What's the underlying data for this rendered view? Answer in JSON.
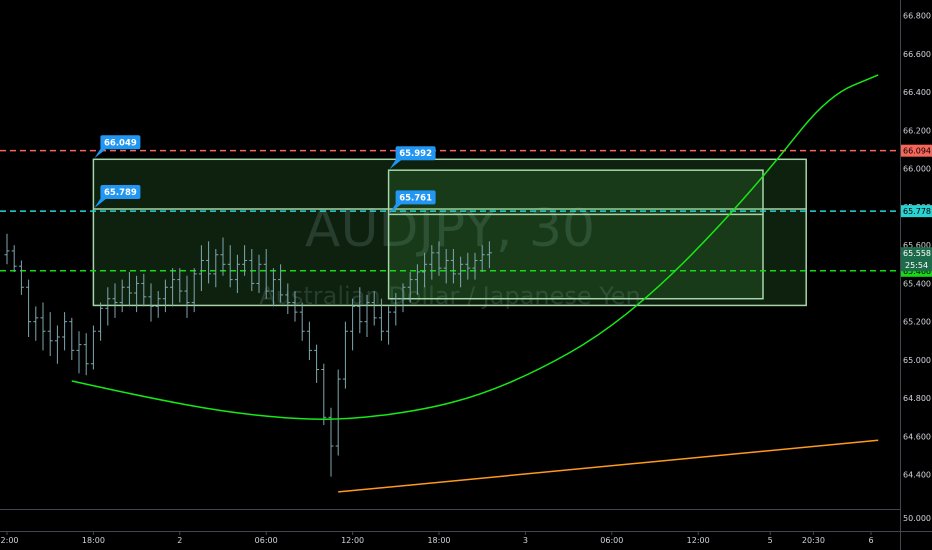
{
  "chart_data": {
    "type": "candlestick",
    "watermark": {
      "symbol": "AUDJPY, 30",
      "description": "Australian Dollar / Japanese Yen"
    },
    "y_axis": {
      "range": [
        64.32,
        66.84
      ],
      "ticks": [
        "66.800",
        "66.600",
        "66.400",
        "66.200",
        "66.000",
        "65.800",
        "65.600",
        "65.400",
        "65.200",
        "65.000",
        "64.800",
        "64.600",
        "64.400"
      ]
    },
    "lower_pane": {
      "ticks": [
        "50.000"
      ]
    },
    "x_axis": {
      "labels": [
        {
          "t": "12:00",
          "i": 0
        },
        {
          "t": "18:00",
          "i": 12
        },
        {
          "t": "2",
          "i": 24
        },
        {
          "t": "06:00",
          "i": 36
        },
        {
          "t": "12:00",
          "i": 48
        },
        {
          "t": "18:00",
          "i": 60
        },
        {
          "t": "3",
          "i": 72
        },
        {
          "t": "06:00",
          "i": 84
        },
        {
          "t": "12:00",
          "i": 96
        },
        {
          "t": "5",
          "i": 106
        },
        {
          "t": "20:30",
          "i": 112
        },
        {
          "t": "6",
          "i": 120
        }
      ]
    },
    "price_levels": [
      {
        "value": 66.094,
        "label": "66.094",
        "color": "#f7665a"
      },
      {
        "value": 65.778,
        "label": "65.778",
        "color": "#27d3d3"
      },
      {
        "value": 65.466,
        "label": "65.466",
        "color": "#16d816"
      }
    ],
    "last_price": {
      "value": 65.558,
      "label": "65.558",
      "countdown": "25:54"
    },
    "boxes": [
      {
        "from": 12,
        "to": 111,
        "top": 66.049,
        "bottom": 65.285,
        "label_top": "66.049",
        "label_mid": "65.789",
        "mid": 65.789
      },
      {
        "from": 53,
        "to": 105,
        "top": 65.992,
        "bottom": 65.32,
        "label_top": "65.992",
        "label_mid": "65.761",
        "mid": 65.761
      }
    ],
    "curve": {
      "color": "#17e817",
      "points": [
        [
          9,
          64.89
        ],
        [
          20,
          64.8
        ],
        [
          30,
          64.73
        ],
        [
          40,
          64.69
        ],
        [
          48,
          64.69
        ],
        [
          58,
          64.74
        ],
        [
          66,
          64.82
        ],
        [
          74,
          64.95
        ],
        [
          82,
          65.12
        ],
        [
          90,
          65.36
        ],
        [
          98,
          65.66
        ],
        [
          106,
          66.0
        ],
        [
          114,
          66.38
        ],
        [
          121,
          66.49
        ]
      ]
    },
    "trendline": {
      "color": "#ff9a1f",
      "points": [
        [
          46,
          64.31
        ],
        [
          121,
          64.58
        ]
      ]
    },
    "candles": [
      [
        65.55,
        65.66,
        65.5,
        65.57
      ],
      [
        65.57,
        65.6,
        65.46,
        65.49
      ],
      [
        65.49,
        65.52,
        65.34,
        65.38
      ],
      [
        65.38,
        65.42,
        65.12,
        65.2
      ],
      [
        65.2,
        65.28,
        65.1,
        65.22
      ],
      [
        65.22,
        65.3,
        65.05,
        65.15
      ],
      [
        65.15,
        65.25,
        65.02,
        65.1
      ],
      [
        65.1,
        65.18,
        64.98,
        65.12
      ],
      [
        65.12,
        65.25,
        65.05,
        65.2
      ],
      [
        65.2,
        65.22,
        65.0,
        65.05
      ],
      [
        65.05,
        65.15,
        64.93,
        65.08
      ],
      [
        65.08,
        65.14,
        64.92,
        64.98
      ],
      [
        64.98,
        65.18,
        64.95,
        65.15
      ],
      [
        65.15,
        65.3,
        65.1,
        65.27
      ],
      [
        65.27,
        65.38,
        65.18,
        65.32
      ],
      [
        65.32,
        65.4,
        65.22,
        65.3
      ],
      [
        65.3,
        65.42,
        65.25,
        65.38
      ],
      [
        65.38,
        65.46,
        65.28,
        65.35
      ],
      [
        65.35,
        65.44,
        65.25,
        65.4
      ],
      [
        65.4,
        65.45,
        65.28,
        65.33
      ],
      [
        65.33,
        65.4,
        65.2,
        65.28
      ],
      [
        65.28,
        65.36,
        65.22,
        65.32
      ],
      [
        65.32,
        65.42,
        65.25,
        65.38
      ],
      [
        65.38,
        65.48,
        65.28,
        65.42
      ],
      [
        65.42,
        65.48,
        65.3,
        65.36
      ],
      [
        65.36,
        65.44,
        65.22,
        65.3
      ],
      [
        65.3,
        65.48,
        65.25,
        65.45
      ],
      [
        65.45,
        65.6,
        65.36,
        65.52
      ],
      [
        65.52,
        65.62,
        65.4,
        65.45
      ],
      [
        65.45,
        65.58,
        65.38,
        65.55
      ],
      [
        65.55,
        65.64,
        65.44,
        65.5
      ],
      [
        65.5,
        65.6,
        65.38,
        65.42
      ],
      [
        65.42,
        65.55,
        65.35,
        65.5
      ],
      [
        65.5,
        65.6,
        65.44,
        65.52
      ],
      [
        65.52,
        65.58,
        65.36,
        65.4
      ],
      [
        65.4,
        65.55,
        65.35,
        65.5
      ],
      [
        65.5,
        65.58,
        65.32,
        65.36
      ],
      [
        65.36,
        65.48,
        65.28,
        65.42
      ],
      [
        65.42,
        65.5,
        65.3,
        65.34
      ],
      [
        65.34,
        65.4,
        65.24,
        65.3
      ],
      [
        65.3,
        65.36,
        65.2,
        65.25
      ],
      [
        65.25,
        65.3,
        65.1,
        65.15
      ],
      [
        65.15,
        65.2,
        65.0,
        65.05
      ],
      [
        65.05,
        65.08,
        64.88,
        64.95
      ],
      [
        64.95,
        64.98,
        64.66,
        64.7
      ],
      [
        64.7,
        64.75,
        64.39,
        64.55
      ],
      [
        64.55,
        64.95,
        64.5,
        64.9
      ],
      [
        64.9,
        65.2,
        64.85,
        65.15
      ],
      [
        65.15,
        65.32,
        65.05,
        65.28
      ],
      [
        65.28,
        65.38,
        65.14,
        65.2
      ],
      [
        65.2,
        65.34,
        65.12,
        65.3
      ],
      [
        65.3,
        65.36,
        65.18,
        65.22
      ],
      [
        65.22,
        65.32,
        65.1,
        65.15
      ],
      [
        65.15,
        65.28,
        65.08,
        65.25
      ],
      [
        65.25,
        65.35,
        65.18,
        65.32
      ],
      [
        65.32,
        65.4,
        65.25,
        65.38
      ],
      [
        65.38,
        65.46,
        65.3,
        65.42
      ],
      [
        65.42,
        65.5,
        65.34,
        65.46
      ],
      [
        65.46,
        65.56,
        65.38,
        65.5
      ],
      [
        65.5,
        65.6,
        65.42,
        65.56
      ],
      [
        65.56,
        65.62,
        65.44,
        65.48
      ],
      [
        65.48,
        65.58,
        65.4,
        65.52
      ],
      [
        65.52,
        65.58,
        65.4,
        65.45
      ],
      [
        65.45,
        65.54,
        65.38,
        65.5
      ],
      [
        65.5,
        65.56,
        65.42,
        65.48
      ],
      [
        65.48,
        65.56,
        65.42,
        65.52
      ],
      [
        65.52,
        65.6,
        65.46,
        65.55
      ],
      [
        65.55,
        65.62,
        65.48,
        65.56
      ]
    ]
  }
}
